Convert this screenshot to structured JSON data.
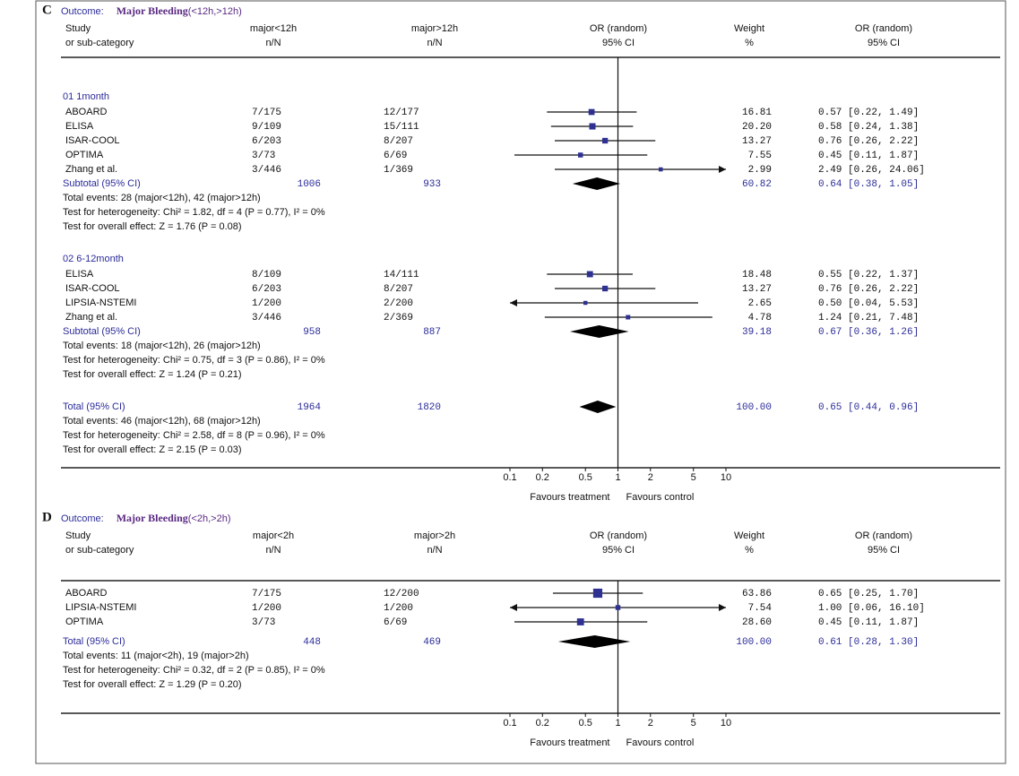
{
  "chart_data": [
    {
      "type": "forest",
      "panel": "C",
      "outcome_label": "Outcome:",
      "outcome": "Major Bleeding",
      "outcome_detail": "(<12h,>12h)",
      "columns": {
        "study": [
          "Study",
          "or sub-category"
        ],
        "treatment": [
          "major<12h",
          "n/N"
        ],
        "control": [
          "major>12h",
          "n/N"
        ],
        "plot": [
          "OR (random)",
          "95% CI"
        ],
        "weight": [
          "Weight",
          "%"
        ],
        "ci": [
          "OR (random)",
          "95% CI"
        ]
      },
      "groups": [
        {
          "name": "01 1month",
          "studies": [
            {
              "name": "ABOARD",
              "treatment": "7/175",
              "control": "12/177",
              "weight": 16.81,
              "weight_label": "16.81",
              "or": 0.57,
              "lo": 0.22,
              "hi": 1.49,
              "ci_label": "0.57 [0.22, 1.49]"
            },
            {
              "name": "ELISA",
              "treatment": "9/109",
              "control": "15/111",
              "weight": 20.2,
              "weight_label": "20.20",
              "or": 0.58,
              "lo": 0.24,
              "hi": 1.38,
              "ci_label": "0.58 [0.24, 1.38]"
            },
            {
              "name": "ISAR-COOL",
              "treatment": "6/203",
              "control": "8/207",
              "weight": 13.27,
              "weight_label": "13.27",
              "or": 0.76,
              "lo": 0.26,
              "hi": 2.22,
              "ci_label": "0.76 [0.26, 2.22]"
            },
            {
              "name": "OPTIMA",
              "treatment": "3/73",
              "control": "6/69",
              "weight": 7.55,
              "weight_label": "7.55",
              "or": 0.45,
              "lo": 0.11,
              "hi": 1.87,
              "ci_label": "0.45 [0.11, 1.87]"
            },
            {
              "name": "Zhang et al.",
              "treatment": "3/446",
              "control": "1/369",
              "weight": 2.99,
              "weight_label": "2.99",
              "or": 2.49,
              "lo": 0.26,
              "hi": 24.06,
              "ci_label": "2.49 [0.26, 24.06]"
            }
          ],
          "subtotal": {
            "name": "Subtotal (95% CI)",
            "treatment": 1006,
            "control": 933,
            "weight": 60.82,
            "weight_label": "60.82",
            "or": 0.64,
            "lo": 0.38,
            "hi": 1.05,
            "ci_label": "0.64 [0.38, 1.05]"
          },
          "notes": [
            "Total events: 28 (major<12h), 42 (major>12h)",
            "Test for heterogeneity: Chi² = 1.82, df = 4 (P = 0.77), I² = 0%",
            "Test for overall effect: Z = 1.76 (P = 0.08)"
          ]
        },
        {
          "name": "02 6-12month",
          "studies": [
            {
              "name": "ELISA",
              "treatment": "8/109",
              "control": "14/111",
              "weight": 18.48,
              "weight_label": "18.48",
              "or": 0.55,
              "lo": 0.22,
              "hi": 1.37,
              "ci_label": "0.55 [0.22, 1.37]"
            },
            {
              "name": "ISAR-COOL",
              "treatment": "6/203",
              "control": "8/207",
              "weight": 13.27,
              "weight_label": "13.27",
              "or": 0.76,
              "lo": 0.26,
              "hi": 2.22,
              "ci_label": "0.76 [0.26, 2.22]"
            },
            {
              "name": "LIPSIA-NSTEMI",
              "treatment": "1/200",
              "control": "2/200",
              "weight": 2.65,
              "weight_label": "2.65",
              "or": 0.5,
              "lo": 0.04,
              "hi": 5.53,
              "ci_label": "0.50 [0.04, 5.53]"
            },
            {
              "name": "Zhang et al.",
              "treatment": "3/446",
              "control": "2/369",
              "weight": 4.78,
              "weight_label": "4.78",
              "or": 1.24,
              "lo": 0.21,
              "hi": 7.48,
              "ci_label": "1.24 [0.21, 7.48]"
            }
          ],
          "subtotal": {
            "name": "Subtotal (95% CI)",
            "treatment": 958,
            "control": 887,
            "weight": 39.18,
            "weight_label": "39.18",
            "or": 0.67,
            "lo": 0.36,
            "hi": 1.26,
            "ci_label": "0.67 [0.36, 1.26]"
          },
          "notes": [
            "Total events: 18 (major<12h), 26 (major>12h)",
            "Test for heterogeneity: Chi² = 0.75, df = 3 (P = 0.86), I² = 0%",
            "Test for overall effect: Z = 1.24 (P = 0.21)"
          ]
        }
      ],
      "total": {
        "name": "Total (95% CI)",
        "treatment": 1964,
        "control": 1820,
        "weight": 100,
        "weight_label": "100.00",
        "or": 0.65,
        "lo": 0.44,
        "hi": 0.96,
        "ci_label": "0.65 [0.44, 0.96]",
        "notes": [
          "Total events: 46 (major<12h), 68 (major>12h)",
          "Test for heterogeneity: Chi² = 2.58, df = 8 (P = 0.96), I² = 0%",
          "Test for overall effect: Z = 2.15 (P = 0.03)"
        ]
      },
      "xscale": "log",
      "xlim": [
        0.1,
        10
      ],
      "xticks": [
        0.1,
        0.2,
        0.5,
        1,
        2,
        5,
        10
      ],
      "reference": 1,
      "xlabel_left": "Favours treatment",
      "xlabel_right": "Favours control",
      "box_color": "#2e3192",
      "diamond_color": "#000000"
    },
    {
      "type": "forest",
      "panel": "D",
      "outcome_label": "Outcome:",
      "outcome": "Major Bleeding",
      "outcome_detail": "(<2h,>2h)",
      "columns": {
        "study": [
          "Study",
          "or sub-category"
        ],
        "treatment": [
          "major<2h",
          "n/N"
        ],
        "control": [
          "major>2h",
          "n/N"
        ],
        "plot": [
          "OR (random)",
          "95% CI"
        ],
        "weight": [
          "Weight",
          "%"
        ],
        "ci": [
          "OR (random)",
          "95% CI"
        ]
      },
      "groups": [
        {
          "studies": [
            {
              "name": "ABOARD",
              "treatment": "7/175",
              "control": "12/200",
              "weight": 63.86,
              "weight_label": "63.86",
              "or": 0.65,
              "lo": 0.25,
              "hi": 1.7,
              "ci_label": "0.65 [0.25, 1.70]"
            },
            {
              "name": "LIPSIA-NSTEMI",
              "treatment": "1/200",
              "control": "1/200",
              "weight": 7.54,
              "weight_label": "7.54",
              "or": 1,
              "lo": 0.06,
              "hi": 16.1,
              "ci_label": "1.00 [0.06, 16.10]"
            },
            {
              "name": "OPTIMA",
              "treatment": "3/73",
              "control": "6/69",
              "weight": 28.6,
              "weight_label": "28.60",
              "or": 0.45,
              "lo": 0.11,
              "hi": 1.87,
              "ci_label": "0.45 [0.11, 1.87]"
            }
          ]
        }
      ],
      "total": {
        "name": "Total (95% CI)",
        "treatment": 448,
        "control": 469,
        "weight": 100,
        "weight_label": "100.00",
        "or": 0.61,
        "lo": 0.28,
        "hi": 1.3,
        "ci_label": "0.61 [0.28, 1.30]",
        "notes": [
          "Total events: 11 (major<2h), 19 (major>2h)",
          "Test for heterogeneity: Chi² = 0.32, df = 2 (P = 0.85), I² = 0%",
          "Test for overall effect: Z = 1.29 (P = 0.20)"
        ]
      },
      "xscale": "log",
      "xlim": [
        0.1,
        10
      ],
      "xticks": [
        0.1,
        0.2,
        0.5,
        1,
        2,
        5,
        10
      ],
      "reference": 1,
      "xlabel_left": "Favours treatment",
      "xlabel_right": "Favours control",
      "box_color": "#2e3192",
      "diamond_color": "#000000"
    }
  ]
}
